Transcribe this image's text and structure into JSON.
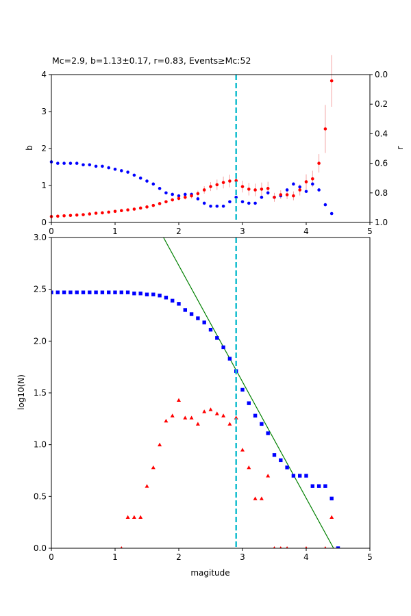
{
  "title": "Mc=2.9, b=1.13±0.17, r=0.83, Events≥Mc:52",
  "chart_data": [
    {
      "type": "scatter",
      "panel": "top",
      "xlabel": "",
      "ylabel": "b",
      "ylabel_right": "r",
      "xlim": [
        0,
        5
      ],
      "ylim": [
        0,
        4
      ],
      "ylim_right": [
        1.0,
        0.0
      ],
      "xticks": [
        "0",
        "1",
        "2",
        "3",
        "4",
        "5"
      ],
      "yticks": [
        "0",
        "1",
        "2",
        "3",
        "4"
      ],
      "yticks_right": [
        "0.0",
        "0.2",
        "0.4",
        "0.6",
        "0.8",
        "1.0"
      ],
      "vline": {
        "x": 2.9,
        "color": "#17becf",
        "style": "dashed"
      },
      "colors": {
        "b": "#ff0000",
        "r": "#0000ff",
        "errorbar": "#f4a3a3"
      },
      "series": [
        {
          "key": "b",
          "axis": "left",
          "x": [
            0.0,
            0.1,
            0.2,
            0.3,
            0.4,
            0.5,
            0.6,
            0.7,
            0.8,
            0.9,
            1.0,
            1.1,
            1.2,
            1.3,
            1.4,
            1.5,
            1.6,
            1.7,
            1.8,
            1.9,
            2.0,
            2.1,
            2.2,
            2.3,
            2.4,
            2.5,
            2.6,
            2.7,
            2.8,
            2.9,
            3.0,
            3.1,
            3.2,
            3.3,
            3.4,
            3.5,
            3.6,
            3.7,
            3.8,
            3.9,
            4.0,
            4.1,
            4.2,
            4.3,
            4.4
          ],
          "values": [
            0.16,
            0.17,
            0.18,
            0.19,
            0.2,
            0.21,
            0.23,
            0.25,
            0.26,
            0.28,
            0.3,
            0.32,
            0.34,
            0.36,
            0.39,
            0.42,
            0.46,
            0.51,
            0.56,
            0.61,
            0.65,
            0.68,
            0.72,
            0.78,
            0.88,
            0.97,
            1.02,
            1.08,
            1.12,
            1.13,
            0.97,
            0.9,
            0.88,
            0.9,
            0.92,
            0.68,
            0.75,
            0.75,
            0.72,
            0.88,
            1.1,
            1.18,
            1.6,
            2.53,
            3.83
          ],
          "errors": [
            0.01,
            0.01,
            0.01,
            0.01,
            0.01,
            0.01,
            0.01,
            0.01,
            0.01,
            0.01,
            0.01,
            0.01,
            0.01,
            0.01,
            0.02,
            0.02,
            0.02,
            0.03,
            0.03,
            0.04,
            0.05,
            0.06,
            0.07,
            0.08,
            0.1,
            0.12,
            0.14,
            0.16,
            0.17,
            0.17,
            0.16,
            0.17,
            0.17,
            0.18,
            0.18,
            0.12,
            0.12,
            0.12,
            0.12,
            0.15,
            0.2,
            0.22,
            0.25,
            0.65,
            0.7
          ]
        },
        {
          "key": "r",
          "axis": "right",
          "x": [
            0.0,
            0.1,
            0.2,
            0.3,
            0.4,
            0.5,
            0.6,
            0.7,
            0.8,
            0.9,
            1.0,
            1.1,
            1.2,
            1.3,
            1.4,
            1.5,
            1.6,
            1.7,
            1.8,
            1.9,
            2.0,
            2.1,
            2.2,
            2.3,
            2.4,
            2.5,
            2.6,
            2.7,
            2.8,
            2.9,
            3.0,
            3.1,
            3.2,
            3.3,
            3.4,
            3.5,
            3.6,
            3.7,
            3.8,
            3.9,
            4.0,
            4.1,
            4.2,
            4.3,
            4.4
          ],
          "values": [
            0.59,
            0.6,
            0.6,
            0.6,
            0.6,
            0.61,
            0.61,
            0.62,
            0.62,
            0.63,
            0.64,
            0.65,
            0.66,
            0.68,
            0.7,
            0.72,
            0.74,
            0.77,
            0.8,
            0.81,
            0.82,
            0.81,
            0.81,
            0.84,
            0.87,
            0.89,
            0.89,
            0.89,
            0.86,
            0.83,
            0.86,
            0.87,
            0.87,
            0.83,
            0.8,
            0.83,
            0.82,
            0.78,
            0.74,
            0.76,
            0.79,
            0.74,
            0.78,
            0.88,
            0.94
          ]
        }
      ]
    },
    {
      "type": "scatter",
      "panel": "bottom",
      "xlabel": "magitude",
      "ylabel": "log10(N)",
      "xlim": [
        0,
        5
      ],
      "ylim": [
        0,
        3
      ],
      "xticks": [
        "0",
        "1",
        "2",
        "3",
        "4",
        "5"
      ],
      "yticks": [
        "0.0",
        "0.5",
        "1.0",
        "1.5",
        "2.0",
        "2.5",
        "3.0"
      ],
      "vline": {
        "x": 2.9,
        "color": "#17becf",
        "style": "dashed"
      },
      "fit_line": {
        "color": "#008000",
        "x": [
          1.76,
          4.43
        ],
        "values": [
          3.0,
          0.0
        ]
      },
      "colors": {
        "cumulative": "#0000ff",
        "noncumulative": "#ff0000"
      },
      "series": [
        {
          "key": "cumulative",
          "marker": "square",
          "x": [
            0.0,
            0.1,
            0.2,
            0.3,
            0.4,
            0.5,
            0.6,
            0.7,
            0.8,
            0.9,
            1.0,
            1.1,
            1.2,
            1.3,
            1.4,
            1.5,
            1.6,
            1.7,
            1.8,
            1.9,
            2.0,
            2.1,
            2.2,
            2.3,
            2.4,
            2.5,
            2.6,
            2.7,
            2.8,
            2.9,
            3.0,
            3.1,
            3.2,
            3.3,
            3.4,
            3.5,
            3.6,
            3.7,
            3.8,
            3.9,
            4.0,
            4.1,
            4.2,
            4.3,
            4.4,
            4.5
          ],
          "values": [
            2.47,
            2.47,
            2.47,
            2.47,
            2.47,
            2.47,
            2.47,
            2.47,
            2.47,
            2.47,
            2.47,
            2.47,
            2.47,
            2.46,
            2.46,
            2.45,
            2.45,
            2.44,
            2.42,
            2.39,
            2.36,
            2.3,
            2.26,
            2.22,
            2.18,
            2.11,
            2.03,
            1.94,
            1.83,
            1.71,
            1.53,
            1.4,
            1.28,
            1.2,
            1.11,
            0.9,
            0.85,
            0.78,
            0.7,
            0.7,
            0.7,
            0.6,
            0.6,
            0.6,
            0.48,
            0.0
          ]
        },
        {
          "key": "noncumulative",
          "marker": "triangle",
          "x": [
            1.1,
            1.2,
            1.3,
            1.4,
            1.5,
            1.6,
            1.7,
            1.8,
            1.9,
            2.0,
            2.1,
            2.2,
            2.3,
            2.4,
            2.5,
            2.6,
            2.7,
            2.8,
            2.9,
            3.0,
            3.1,
            3.2,
            3.3,
            3.4,
            3.5,
            3.6,
            3.7,
            4.0,
            4.3,
            4.4
          ],
          "values": [
            0.0,
            0.3,
            0.3,
            0.3,
            0.6,
            0.78,
            1.0,
            1.23,
            1.28,
            1.43,
            1.26,
            1.26,
            1.2,
            1.32,
            1.34,
            1.3,
            1.28,
            1.2,
            1.26,
            0.95,
            0.78,
            0.48,
            0.48,
            0.7,
            0.0,
            0.0,
            0.0,
            0.0,
            0.0,
            0.3
          ]
        }
      ]
    }
  ]
}
